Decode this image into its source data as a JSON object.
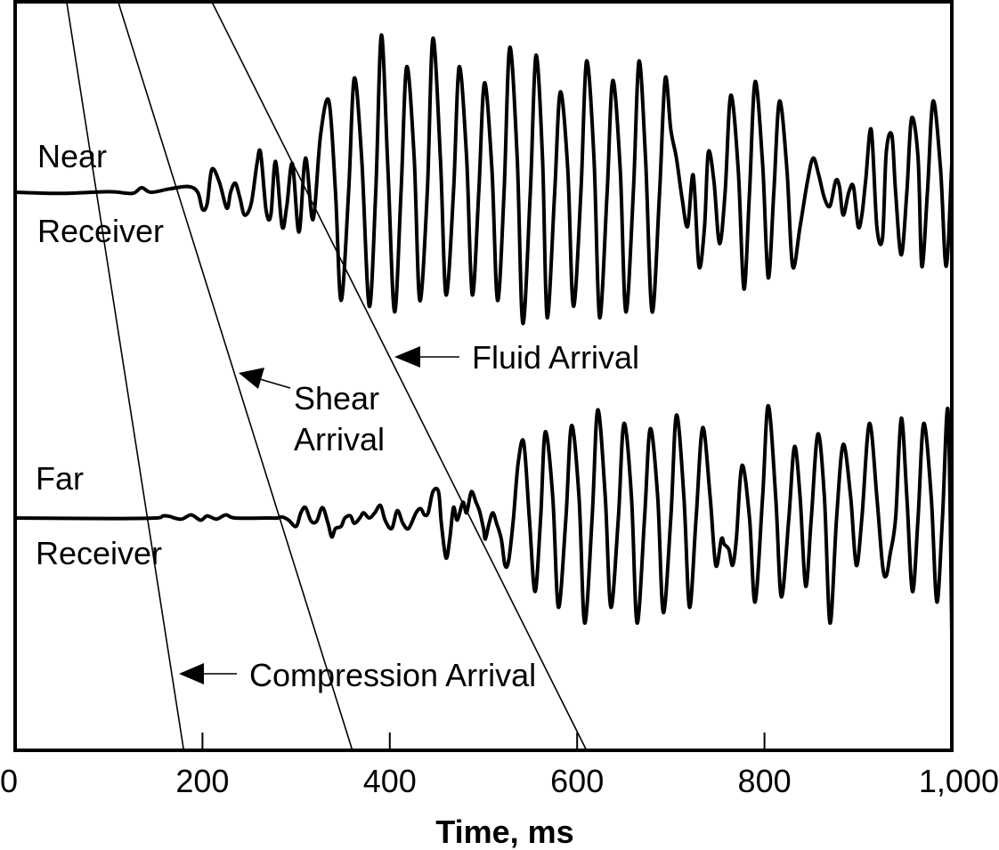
{
  "chart_data": {
    "type": "line",
    "xlabel": "Time, ms",
    "ylabel": "",
    "title": "",
    "xlim": [
      0,
      1000
    ],
    "x_ticks": [
      0,
      200,
      400,
      600,
      800,
      1000
    ],
    "x_tick_labels": [
      "0",
      "200",
      "400",
      "600",
      "800",
      "1,000"
    ],
    "grid": false,
    "series": [
      {
        "receiver_label_top": "Near",
        "receiver_label_bottom": "Receiver",
        "points": [
          [
            0,
            0
          ],
          [
            50,
            -0.01
          ],
          [
            100,
            0.005
          ],
          [
            125,
            -0.01
          ],
          [
            135,
            0.04
          ],
          [
            145,
            0.0
          ],
          [
            165,
            0.03
          ],
          [
            185,
            0.05
          ],
          [
            195,
            0.0
          ],
          [
            200,
            -0.15
          ],
          [
            205,
            -0.1
          ],
          [
            210,
            0.2
          ],
          [
            218,
            0.09
          ],
          [
            226,
            -0.14
          ],
          [
            230,
            0.0
          ],
          [
            235,
            0.08
          ],
          [
            240,
            -0.05
          ],
          [
            245,
            -0.2
          ],
          [
            252,
            -0.1
          ],
          [
            258,
            0.24
          ],
          [
            262,
            0.35
          ],
          [
            268,
            -0.16
          ],
          [
            273,
            -0.2
          ],
          [
            278,
            0.27
          ],
          [
            285,
            -0.3
          ],
          [
            290,
            -0.12
          ],
          [
            296,
            0.25
          ],
          [
            303,
            -0.35
          ],
          [
            310,
            0.3
          ],
          [
            318,
            -0.24
          ],
          [
            326,
            0.5
          ],
          [
            335,
            0.8
          ],
          [
            342,
            0.0
          ],
          [
            348,
            -0.95
          ],
          [
            356,
            0.0
          ],
          [
            362,
            1.0
          ],
          [
            370,
            0.3
          ],
          [
            378,
            -1.0
          ],
          [
            385,
            0.0
          ],
          [
            391,
            1.38
          ],
          [
            398,
            0.2
          ],
          [
            405,
            -1.05
          ],
          [
            412,
            0.0
          ],
          [
            418,
            1.1
          ],
          [
            426,
            0.3
          ],
          [
            432,
            -0.95
          ],
          [
            440,
            0.0
          ],
          [
            446,
            1.35
          ],
          [
            454,
            0.3
          ],
          [
            460,
            -0.9
          ],
          [
            468,
            0.0
          ],
          [
            474,
            1.1
          ],
          [
            482,
            0.3
          ],
          [
            488,
            -0.9
          ],
          [
            495,
            0.0
          ],
          [
            501,
            0.96
          ],
          [
            509,
            0.2
          ],
          [
            515,
            -0.95
          ],
          [
            522,
            0.0
          ],
          [
            528,
            1.27
          ],
          [
            536,
            0.3
          ],
          [
            542,
            -1.15
          ],
          [
            550,
            0.0
          ],
          [
            556,
            1.2
          ],
          [
            563,
            0.3
          ],
          [
            568,
            -1.1
          ],
          [
            576,
            0.0
          ],
          [
            582,
            0.88
          ],
          [
            590,
            0.2
          ],
          [
            596,
            -1.0
          ],
          [
            604,
            0.0
          ],
          [
            610,
            1.15
          ],
          [
            618,
            0.3
          ],
          [
            624,
            -1.1
          ],
          [
            632,
            0.0
          ],
          [
            638,
            0.98
          ],
          [
            646,
            0.2
          ],
          [
            652,
            -1.05
          ],
          [
            660,
            0.0
          ],
          [
            666,
            1.15
          ],
          [
            673,
            0.3
          ],
          [
            680,
            -1.05
          ],
          [
            688,
            0.0
          ],
          [
            694,
            1.0
          ],
          [
            700,
            0.55
          ],
          [
            706,
            0.3
          ],
          [
            712,
            -0.05
          ],
          [
            718,
            -0.3
          ],
          [
            724,
            0.15
          ],
          [
            730,
            -0.65
          ],
          [
            736,
            -0.3
          ],
          [
            740,
            0.35
          ],
          [
            746,
            0.1
          ],
          [
            752,
            -0.45
          ],
          [
            758,
            0.0
          ],
          [
            764,
            0.85
          ],
          [
            772,
            0.2
          ],
          [
            778,
            -0.85
          ],
          [
            784,
            0.0
          ],
          [
            790,
            0.97
          ],
          [
            798,
            0.25
          ],
          [
            804,
            -0.75
          ],
          [
            810,
            0.0
          ],
          [
            816,
            0.8
          ],
          [
            824,
            0.2
          ],
          [
            830,
            -0.65
          ],
          [
            838,
            -0.3
          ],
          [
            846,
            0.1
          ],
          [
            852,
            0.3
          ],
          [
            858,
            0.15
          ],
          [
            864,
            -0.05
          ],
          [
            870,
            -0.12
          ],
          [
            876,
            0.1
          ],
          [
            880,
            0.05
          ],
          [
            884,
            -0.2
          ],
          [
            890,
            0.0
          ],
          [
            895,
            0.05
          ],
          [
            900,
            -0.3
          ],
          [
            904,
            -0.2
          ],
          [
            908,
            0.1
          ],
          [
            914,
            0.55
          ],
          [
            920,
            -0.3
          ],
          [
            926,
            -0.4
          ],
          [
            930,
            0.35
          ],
          [
            936,
            0.5
          ],
          [
            940,
            0.0
          ],
          [
            946,
            -0.55
          ],
          [
            952,
            0.0
          ],
          [
            957,
            0.65
          ],
          [
            964,
            0.3
          ],
          [
            968,
            -0.65
          ],
          [
            974,
            0.0
          ],
          [
            980,
            0.8
          ],
          [
            988,
            0.2
          ],
          [
            994,
            -0.65
          ],
          [
            1000,
            0.25
          ]
        ]
      },
      {
        "receiver_label_top": "Far",
        "receiver_label_bottom": "Receiver",
        "points": [
          [
            0,
            0
          ],
          [
            100,
            -0.005
          ],
          [
            150,
            0.0
          ],
          [
            158,
            0.02
          ],
          [
            165,
            0.015
          ],
          [
            170,
            0.0
          ],
          [
            178,
            -0.01
          ],
          [
            188,
            0.03
          ],
          [
            198,
            -0.02
          ],
          [
            205,
            0.02
          ],
          [
            215,
            -0.01
          ],
          [
            225,
            0.03
          ],
          [
            235,
            0.0
          ],
          [
            270,
            0.0
          ],
          [
            280,
            0.0
          ],
          [
            285,
            0.01
          ],
          [
            292,
            -0.02
          ],
          [
            300,
            -0.08
          ],
          [
            305,
            0.05
          ],
          [
            310,
            0.1
          ],
          [
            316,
            -0.03
          ],
          [
            322,
            -0.03
          ],
          [
            328,
            0.1
          ],
          [
            334,
            -0.05
          ],
          [
            338,
            -0.18
          ],
          [
            342,
            -0.1
          ],
          [
            348,
            -0.08
          ],
          [
            352,
            0.0
          ],
          [
            358,
            0.02
          ],
          [
            362,
            -0.05
          ],
          [
            368,
            0.0
          ],
          [
            372,
            0.05
          ],
          [
            378,
            0.0
          ],
          [
            384,
            0.05
          ],
          [
            390,
            0.12
          ],
          [
            395,
            -0.02
          ],
          [
            402,
            -0.1
          ],
          [
            408,
            0.07
          ],
          [
            414,
            -0.05
          ],
          [
            420,
            -0.1
          ],
          [
            428,
            0.05
          ],
          [
            433,
            0.09
          ],
          [
            437,
            0.03
          ],
          [
            441,
            0.05
          ],
          [
            446,
            0.25
          ],
          [
            452,
            0.25
          ],
          [
            455,
            -0.05
          ],
          [
            460,
            -0.38
          ],
          [
            464,
            -0.2
          ],
          [
            468,
            0.1
          ],
          [
            472,
            -0.02
          ],
          [
            478,
            0.15
          ],
          [
            482,
            0.05
          ],
          [
            487,
            0.25
          ],
          [
            492,
            0.15
          ],
          [
            496,
            0.06
          ],
          [
            500,
            -0.1
          ],
          [
            502,
            -0.2
          ],
          [
            506,
            -0.05
          ],
          [
            510,
            0.05
          ],
          [
            514,
            -0.05
          ],
          [
            519,
            -0.2
          ],
          [
            523,
            -0.45
          ],
          [
            527,
            -0.4
          ],
          [
            532,
            0.0
          ],
          [
            537,
            0.52
          ],
          [
            543,
            0.72
          ],
          [
            549,
            0.0
          ],
          [
            555,
            -0.7
          ],
          [
            561,
            0.0
          ],
          [
            566,
            0.82
          ],
          [
            574,
            0.2
          ],
          [
            580,
            -0.85
          ],
          [
            588,
            0.0
          ],
          [
            594,
            0.88
          ],
          [
            602,
            0.2
          ],
          [
            608,
            -1.0
          ],
          [
            616,
            0.0
          ],
          [
            622,
            1.03
          ],
          [
            630,
            0.2
          ],
          [
            636,
            -0.85
          ],
          [
            644,
            0.0
          ],
          [
            650,
            0.9
          ],
          [
            658,
            0.2
          ],
          [
            664,
            -1.0
          ],
          [
            672,
            0.0
          ],
          [
            678,
            0.85
          ],
          [
            686,
            0.2
          ],
          [
            692,
            -0.9
          ],
          [
            700,
            0.0
          ],
          [
            706,
            0.98
          ],
          [
            714,
            0.2
          ],
          [
            720,
            -0.85
          ],
          [
            727,
            0.0
          ],
          [
            734,
            0.86
          ],
          [
            742,
            0.2
          ],
          [
            748,
            -0.45
          ],
          [
            754,
            -0.2
          ],
          [
            757,
            -0.25
          ],
          [
            762,
            -0.3
          ],
          [
            766,
            -0.45
          ],
          [
            770,
            -0.2
          ],
          [
            776,
            0.5
          ],
          [
            784,
            0.0
          ],
          [
            790,
            -0.8
          ],
          [
            798,
            0.2
          ],
          [
            804,
            1.07
          ],
          [
            812,
            0.2
          ],
          [
            818,
            -0.75
          ],
          [
            826,
            0.0
          ],
          [
            832,
            0.68
          ],
          [
            838,
            0.2
          ],
          [
            844,
            -0.65
          ],
          [
            850,
            0.0
          ],
          [
            857,
            0.8
          ],
          [
            864,
            0.2
          ],
          [
            870,
            -1.0
          ],
          [
            877,
            0.0
          ],
          [
            884,
            0.7
          ],
          [
            892,
            0.2
          ],
          [
            898,
            -0.45
          ],
          [
            904,
            0.0
          ],
          [
            912,
            0.9
          ],
          [
            920,
            0.2
          ],
          [
            926,
            -0.45
          ],
          [
            930,
            -0.55
          ],
          [
            934,
            -0.35
          ],
          [
            940,
            0.0
          ],
          [
            946,
            0.95
          ],
          [
            952,
            0.2
          ],
          [
            958,
            -0.7
          ],
          [
            964,
            0.0
          ],
          [
            970,
            0.9
          ],
          [
            978,
            0.2
          ],
          [
            984,
            -0.8
          ],
          [
            990,
            0.0
          ],
          [
            996,
            1.02
          ],
          [
            1000,
            -1.1
          ]
        ]
      }
    ],
    "annotations": [
      {
        "id": "compression",
        "text": "Compression Arrival",
        "line": [
          [
            55,
            0.0
          ],
          [
            180,
            1.0
          ]
        ]
      },
      {
        "id": "shear",
        "text_lines": [
          "Shear",
          "Arrival"
        ],
        "line": [
          [
            110,
            0.0
          ],
          [
            360,
            1.0
          ]
        ]
      },
      {
        "id": "fluid",
        "text": "Fluid Arrival",
        "line": [
          [
            210,
            0.0
          ],
          [
            610,
            1.0
          ]
        ]
      }
    ]
  }
}
